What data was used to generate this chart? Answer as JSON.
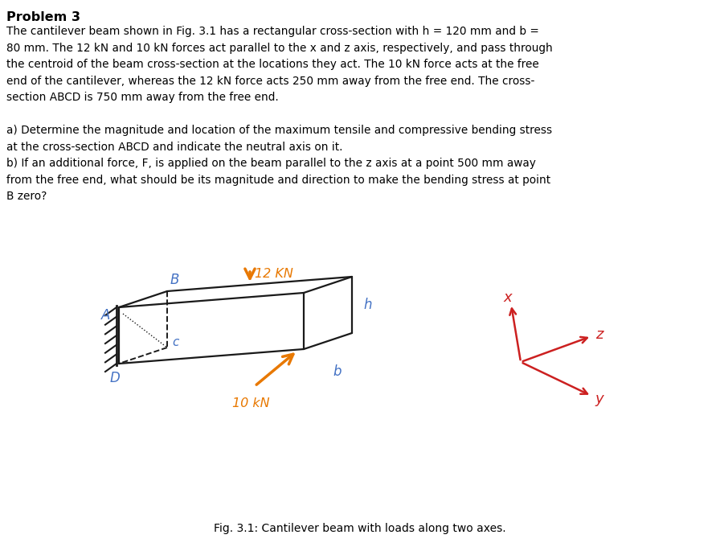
{
  "title": "Problem 3",
  "bg_color": "#ffffff",
  "text_color": "#000000",
  "paragraph1": "The cantilever beam shown in Fig. 3.1 has a rectangular cross-section with h = 120 mm and b =\n80 mm. The 12 kN and 10 kN forces act parallel to the x and z axis, respectively, and pass through\nthe centroid of the beam cross-section at the locations they act. The 10 kN force acts at the free\nend of the cantilever, whereas the 12 kN force acts 250 mm away from the free end. The cross-\nsection ABCD is 750 mm away from the free end.",
  "paragraph2": "a) Determine the magnitude and location of the maximum tensile and compressive bending stress\nat the cross-section ABCD and indicate the neutral axis on it.\nb) If an additional force, F, is applied on the beam parallel to the z axis at a point 500 mm away\nfrom the free end, what should be its magnitude and direction to make the bending stress at point\nB zero?",
  "fig_caption": "Fig. 3.1: Cantilever beam with loads along two axes.",
  "beam_color": "#1a1a1a",
  "label_color": "#4472c4",
  "force_color": "#e87800",
  "axis_color": "#cc2020"
}
